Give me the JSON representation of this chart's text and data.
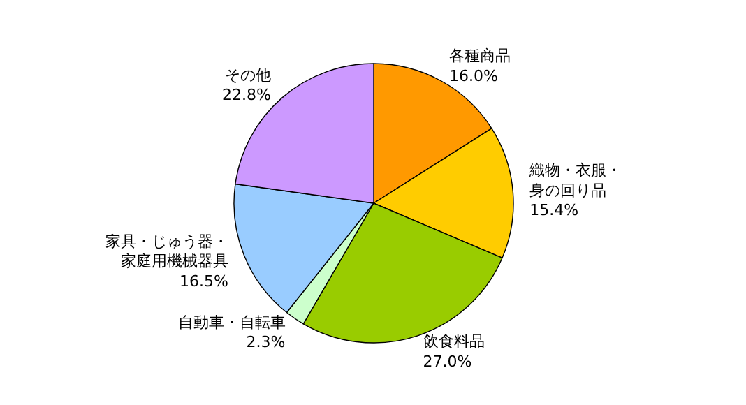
{
  "chart_data": {
    "type": "pie",
    "categories": [
      "各種商品",
      "織物・衣服・身の回り品",
      "飲食料品",
      "自動車・自転車",
      "家具・じゅう器・家庭用機械器具",
      "その他"
    ],
    "values": [
      16.0,
      15.4,
      27.0,
      2.3,
      16.5,
      22.8
    ],
    "value_labels": [
      "16.0%",
      "15.4%",
      "27.0%",
      "2.3%",
      "16.5%",
      "22.8%"
    ],
    "colors": [
      "#ff9900",
      "#ffcc00",
      "#99cc00",
      "#ccffcc",
      "#99ccff",
      "#cc99ff"
    ]
  }
}
